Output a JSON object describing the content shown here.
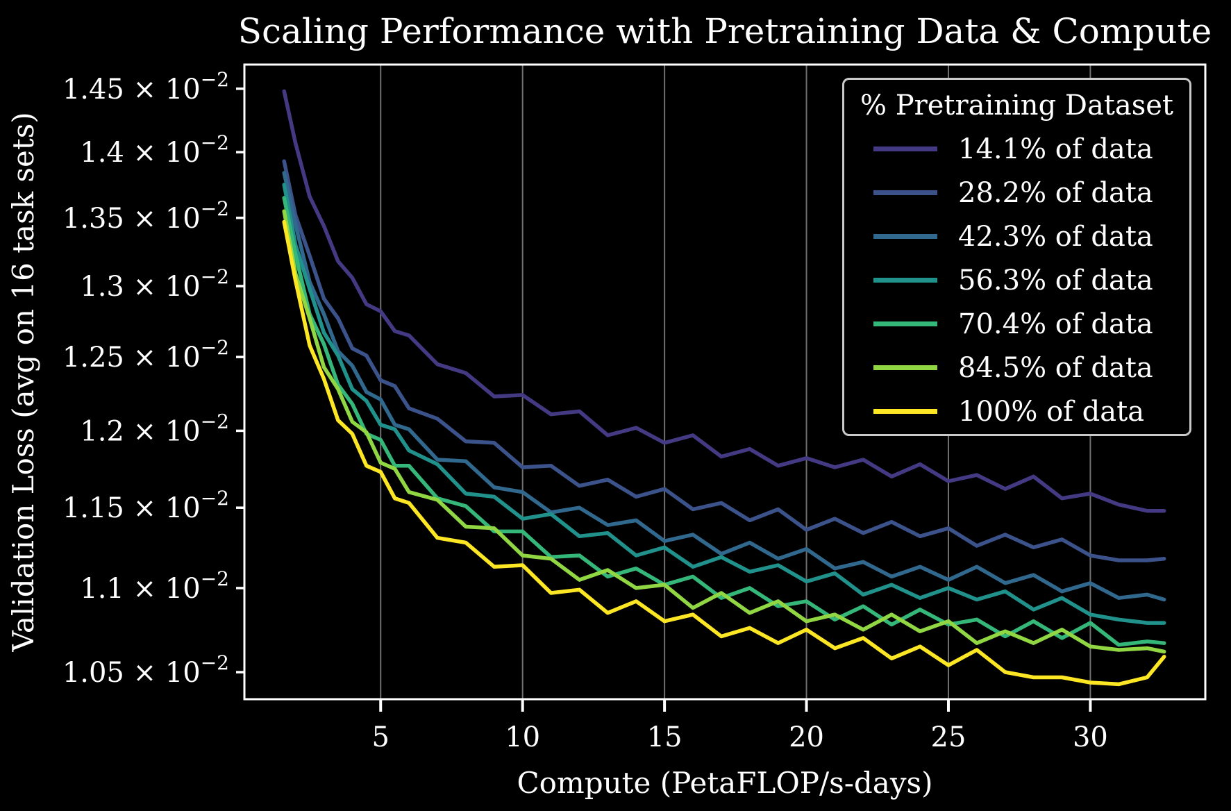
{
  "page": {
    "background": "#000000",
    "text_color": "#ffffff"
  },
  "chart_data": {
    "type": "line",
    "title": "Scaling Performance with Pretraining Data & Compute",
    "xlabel": "Compute (PetaFLOP/s-days)",
    "ylabel": "Validation Loss (avg on 16 task sets)",
    "x_scale": "linear",
    "y_scale": "log",
    "xlim": [
      0.2,
      34.05
    ],
    "ylim": [
      0.010344,
      0.014695
    ],
    "x_ticks": [
      5,
      10,
      15,
      20,
      25,
      30
    ],
    "y_ticks": [
      1.45,
      1.4,
      1.35,
      1.3,
      1.25,
      1.2,
      1.15,
      1.1,
      1.05
    ],
    "y_tick_exponent": "−2",
    "y_tick_times": " × 10",
    "grid": "vertical-only",
    "grid_color": "#707070",
    "spine_color": "#ffffff",
    "values_scale": 0.01,
    "legend": {
      "title": "% Pretraining Dataset",
      "position": "upper right"
    },
    "x": [
      1.6,
      2,
      2.5,
      3,
      3.5,
      4,
      4.5,
      5,
      5.5,
      6,
      7,
      8,
      9,
      10,
      11,
      12,
      13,
      14,
      15,
      16,
      17,
      18,
      19,
      20,
      21,
      22,
      23,
      24,
      25,
      26,
      27,
      28,
      29,
      30,
      31,
      32,
      32.6
    ],
    "series": [
      {
        "name": "14.1% of data",
        "color": "#443983",
        "values": [
          1.448,
          1.407,
          1.366,
          1.344,
          1.318,
          1.306,
          1.287,
          1.282,
          1.268,
          1.265,
          1.245,
          1.239,
          1.223,
          1.224,
          1.211,
          1.213,
          1.197,
          1.202,
          1.192,
          1.197,
          1.183,
          1.188,
          1.177,
          1.182,
          1.176,
          1.181,
          1.17,
          1.178,
          1.167,
          1.171,
          1.162,
          1.17,
          1.156,
          1.159,
          1.152,
          1.148,
          1.148
        ]
      },
      {
        "name": "28.2% of data",
        "color": "#3b528b",
        "values": [
          1.393,
          1.352,
          1.322,
          1.291,
          1.277,
          1.256,
          1.251,
          1.234,
          1.23,
          1.215,
          1.208,
          1.193,
          1.192,
          1.176,
          1.177,
          1.164,
          1.168,
          1.157,
          1.162,
          1.149,
          1.153,
          1.142,
          1.149,
          1.136,
          1.143,
          1.134,
          1.141,
          1.132,
          1.137,
          1.126,
          1.133,
          1.125,
          1.13,
          1.12,
          1.117,
          1.117,
          1.118
        ]
      },
      {
        "name": "42.3% of data",
        "color": "#31688e",
        "values": [
          1.384,
          1.345,
          1.303,
          1.28,
          1.254,
          1.244,
          1.226,
          1.221,
          1.204,
          1.201,
          1.181,
          1.18,
          1.163,
          1.16,
          1.147,
          1.15,
          1.139,
          1.142,
          1.129,
          1.133,
          1.121,
          1.128,
          1.118,
          1.124,
          1.112,
          1.116,
          1.107,
          1.113,
          1.105,
          1.113,
          1.103,
          1.108,
          1.098,
          1.103,
          1.094,
          1.096,
          1.093
        ]
      },
      {
        "name": "56.3% of data",
        "color": "#21918c",
        "values": [
          1.375,
          1.33,
          1.298,
          1.267,
          1.251,
          1.228,
          1.22,
          1.204,
          1.201,
          1.187,
          1.178,
          1.159,
          1.157,
          1.143,
          1.146,
          1.132,
          1.134,
          1.12,
          1.125,
          1.113,
          1.119,
          1.11,
          1.114,
          1.104,
          1.109,
          1.096,
          1.102,
          1.094,
          1.1,
          1.093,
          1.098,
          1.087,
          1.094,
          1.084,
          1.081,
          1.079,
          1.079
        ]
      },
      {
        "name": "70.4% of data",
        "color": "#35b779",
        "values": [
          1.365,
          1.323,
          1.28,
          1.259,
          1.231,
          1.218,
          1.198,
          1.194,
          1.177,
          1.177,
          1.156,
          1.151,
          1.135,
          1.135,
          1.119,
          1.12,
          1.107,
          1.112,
          1.102,
          1.107,
          1.094,
          1.1,
          1.089,
          1.092,
          1.081,
          1.089,
          1.078,
          1.087,
          1.078,
          1.081,
          1.071,
          1.08,
          1.07,
          1.079,
          1.066,
          1.068,
          1.067
        ]
      },
      {
        "name": "84.5% of data",
        "color": "#90d743",
        "values": [
          1.355,
          1.309,
          1.277,
          1.243,
          1.228,
          1.206,
          1.199,
          1.179,
          1.175,
          1.16,
          1.155,
          1.138,
          1.137,
          1.12,
          1.118,
          1.105,
          1.111,
          1.1,
          1.102,
          1.088,
          1.097,
          1.085,
          1.092,
          1.08,
          1.084,
          1.075,
          1.084,
          1.074,
          1.08,
          1.067,
          1.074,
          1.067,
          1.075,
          1.065,
          1.063,
          1.064,
          1.062
        ]
      },
      {
        "name": "100% of data",
        "color": "#fde725",
        "values": [
          1.347,
          1.304,
          1.258,
          1.235,
          1.207,
          1.198,
          1.177,
          1.173,
          1.156,
          1.153,
          1.131,
          1.128,
          1.113,
          1.114,
          1.097,
          1.099,
          1.085,
          1.092,
          1.08,
          1.084,
          1.071,
          1.076,
          1.067,
          1.075,
          1.064,
          1.07,
          1.058,
          1.065,
          1.054,
          1.063,
          1.05,
          1.047,
          1.047,
          1.044,
          1.043,
          1.047,
          1.059
        ]
      }
    ]
  }
}
